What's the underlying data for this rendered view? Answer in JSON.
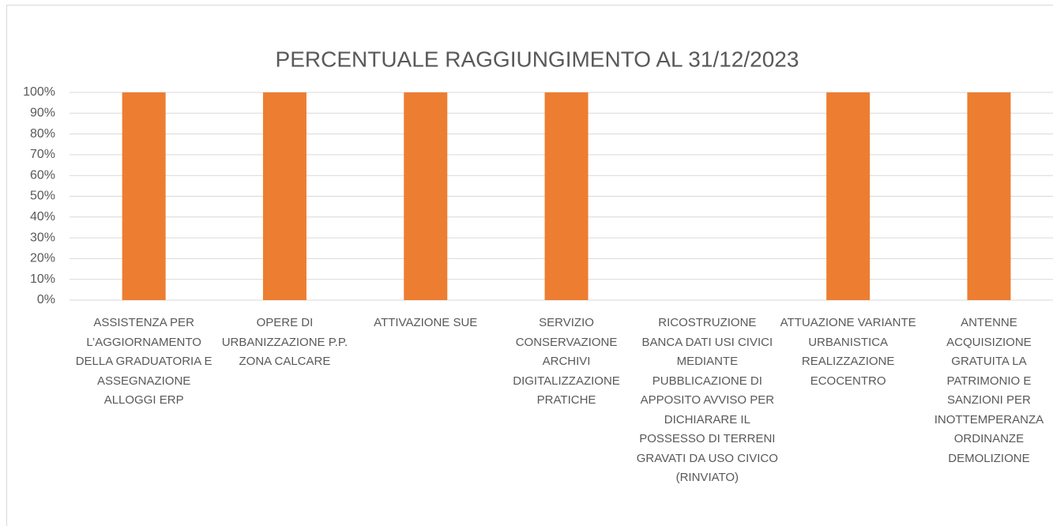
{
  "chart_data": {
    "type": "bar",
    "title": "PERCENTUALE RAGGIUNGIMENTO AL 31/12/2023",
    "categories": [
      "ASSISTENZA PER L’AGGIORNAMENTO DELLA GRADUATORIA E ASSEGNAZIONE ALLOGGI ERP",
      "OPERE DI URBANIZZAZIONE P.P. ZONA CALCARE",
      "ATTIVAZIONE SUE",
      "SERVIZIO CONSERVAZIONE ARCHIVI DIGITALIZZAZIONE PRATICHE",
      "RICOSTRUZIONE BANCA DATI USI CIVICI MEDIANTE PUBBLICAZIONE DI APPOSITO AVVISO PER DICHIARARE IL POSSESSO DI TERRENI GRAVATI DA USO CIVICO (RINVIATO)",
      "ATTUAZIONE VARIANTE URBANISTICA REALIZZAZIONE ECOCENTRO",
      "ANTENNE ACQUISIZIONE GRATUITA LA PATRIMONIO E SANZIONI PER INOTTEMPERANZA ORDINANZE DEMOLIZIONE"
    ],
    "values": [
      100,
      100,
      100,
      100,
      0,
      100,
      100
    ],
    "color": "#ed7d31",
    "ylim": [
      0,
      100
    ],
    "yticks": [
      {
        "value": 0,
        "label": "0%"
      },
      {
        "value": 10,
        "label": "10%"
      },
      {
        "value": 20,
        "label": "20%"
      },
      {
        "value": 30,
        "label": "30%"
      },
      {
        "value": 40,
        "label": "40%"
      },
      {
        "value": 50,
        "label": "50%"
      },
      {
        "value": 60,
        "label": "60%"
      },
      {
        "value": 70,
        "label": "70%"
      },
      {
        "value": 80,
        "label": "80%"
      },
      {
        "value": 90,
        "label": "90%"
      },
      {
        "value": 100,
        "label": "100%"
      }
    ],
    "grid": true
  }
}
